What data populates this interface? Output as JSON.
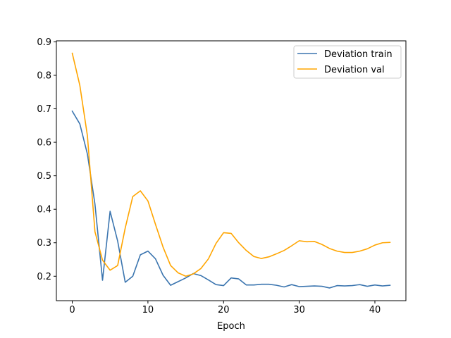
{
  "chart_data": {
    "type": "line",
    "xlabel": "Epoch",
    "ylabel": "",
    "xlim": [
      -2.1,
      44.1
    ],
    "ylim": [
      0.127,
      0.903
    ],
    "xticks": [
      0,
      10,
      20,
      30,
      40
    ],
    "yticks": [
      0.2,
      0.3,
      0.4,
      0.5,
      0.6,
      0.7,
      0.8,
      0.9
    ],
    "xtick_labels": [
      "0",
      "10",
      "20",
      "30",
      "40"
    ],
    "ytick_labels": [
      "0.2",
      "0.3",
      "0.4",
      "0.5",
      "0.6",
      "0.7",
      "0.8",
      "0.9"
    ],
    "grid": false,
    "legend_position": "top-right",
    "x": [
      0,
      1,
      2,
      3,
      4,
      5,
      6,
      7,
      8,
      9,
      10,
      11,
      12,
      13,
      14,
      15,
      16,
      17,
      18,
      19,
      20,
      21,
      22,
      23,
      24,
      25,
      26,
      27,
      28,
      29,
      30,
      31,
      32,
      33,
      34,
      35,
      36,
      37,
      38,
      39,
      40,
      41,
      42
    ],
    "series": [
      {
        "name": "Deviation train",
        "color": "#3b75af",
        "values": [
          0.693,
          0.655,
          0.565,
          0.415,
          0.188,
          0.394,
          0.305,
          0.182,
          0.2,
          0.264,
          0.275,
          0.252,
          0.203,
          0.173,
          0.184,
          0.195,
          0.208,
          0.202,
          0.189,
          0.175,
          0.172,
          0.195,
          0.192,
          0.174,
          0.174,
          0.176,
          0.176,
          0.173,
          0.168,
          0.175,
          0.169,
          0.17,
          0.171,
          0.17,
          0.165,
          0.172,
          0.171,
          0.172,
          0.175,
          0.17,
          0.174,
          0.171,
          0.173
        ]
      },
      {
        "name": "Deviation val",
        "color": "#ffa500",
        "values": [
          0.866,
          0.77,
          0.62,
          0.333,
          0.248,
          0.218,
          0.232,
          0.344,
          0.438,
          0.455,
          0.425,
          0.355,
          0.287,
          0.232,
          0.21,
          0.2,
          0.207,
          0.223,
          0.252,
          0.298,
          0.33,
          0.328,
          0.3,
          0.277,
          0.259,
          0.253,
          0.258,
          0.267,
          0.277,
          0.291,
          0.306,
          0.303,
          0.304,
          0.295,
          0.283,
          0.275,
          0.271,
          0.271,
          0.275,
          0.282,
          0.293,
          0.3,
          0.301
        ]
      }
    ]
  }
}
